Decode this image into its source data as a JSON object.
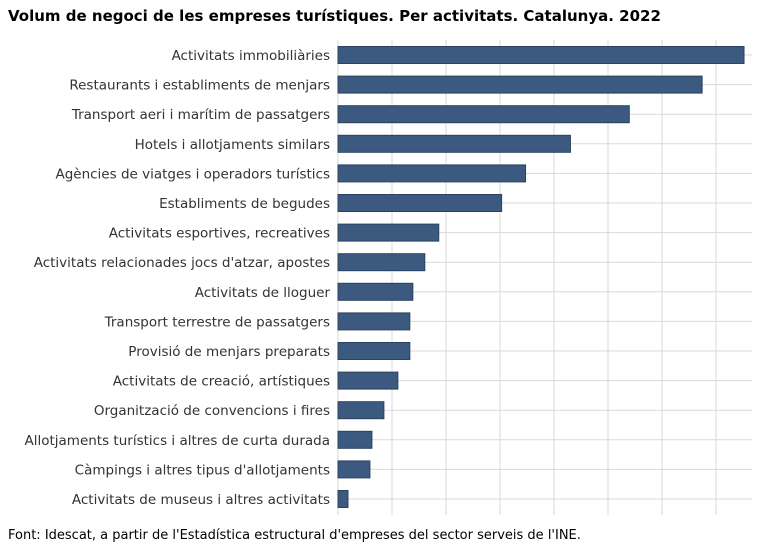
{
  "page": {
    "title": "Volum de negoci de les empreses turístiques. Per activitats. Catalunya. 2022",
    "footer": "Font: Idescat, a partir de l'Estadística estructural d'empreses del sector serveis de l'INE."
  },
  "chart_data": {
    "type": "bar",
    "orientation": "horizontal",
    "title": "Volum de negoci de les empreses turístiques. Per activitats. Catalunya. 2022",
    "categories": [
      "Activitats immobiliàries",
      "Restaurants i establiments de menjars",
      "Transport aeri i marítim de passatgers",
      "Hotels i allotjaments similars",
      "Agències de viatges i operadors turístics",
      "Establiments de begudes",
      "Activitats esportives, recreatives",
      "Activitats relacionades jocs d'atzar, apostes",
      "Activitats de lloguer",
      "Transport terrestre de passatgers",
      "Provisió de menjars preparats",
      "Activitats de creació, artístiques",
      "Organització de convencions i fires",
      "Allotjaments turístics i altres de curta durada",
      "Càmpings i altres tipus d'allotjaments",
      "Activitats de museus i altres activitats"
    ],
    "values": [
      407,
      365,
      292,
      233,
      188,
      164,
      101,
      87,
      75,
      72,
      72,
      60,
      46,
      34,
      32,
      10
    ],
    "xlim": [
      0,
      415
    ],
    "grid": true,
    "bar_color": "#3c5a80",
    "bar_edge_color": "#2b4260",
    "grid_color": "#d9d9d9"
  }
}
